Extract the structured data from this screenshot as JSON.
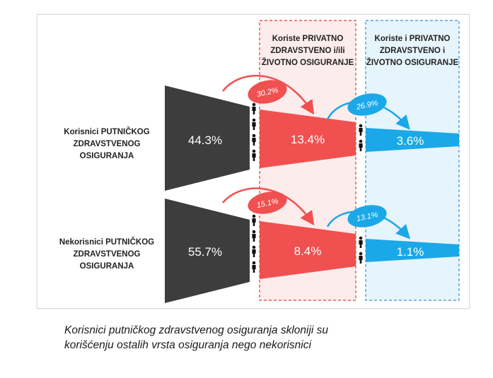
{
  "header_left": {
    "line1": "Koriste PRIVATNO",
    "line2": "ZDRAVSTVENO i/ili",
    "line3": "ŽIVOTNO OSIGURANJE"
  },
  "header_right": {
    "line1": "Koriste i PRIVATNO",
    "line2": "ZDRAVSTVENO i",
    "line3": "ŽIVOTNO OSIGURANJE"
  },
  "row1": {
    "label_line1": "Korisnici PUTNIČKOG",
    "label_line2": "ZDRAVSTVENOG OSIGURANJA",
    "base": "44.3%",
    "private_or_life": "13.4%",
    "private_and_life": "3.6%",
    "conv1": "30.2%",
    "conv2": "26.9%"
  },
  "row2": {
    "label_line1": "Nekorisnici PUTNIČKOG",
    "label_line2": "ZDRAVSTVENOG OSIGURANJA",
    "base": "55.7%",
    "private_or_life": "8.4%",
    "private_and_life": "1.1%",
    "conv1": "15.1%",
    "conv2": "13.1%"
  },
  "colors": {
    "dark": "#3d3d3d",
    "red": "#f0504f",
    "blue": "#1aa8e8",
    "red_zone": "#fdecec",
    "blue_zone": "#e6f4fb"
  },
  "caption": {
    "line1": "Korisnici putničkog zdravstvenog osiguranja skloniji su",
    "line2": "korišćenju ostalih vrsta osiguranja nego nekorisnici"
  }
}
